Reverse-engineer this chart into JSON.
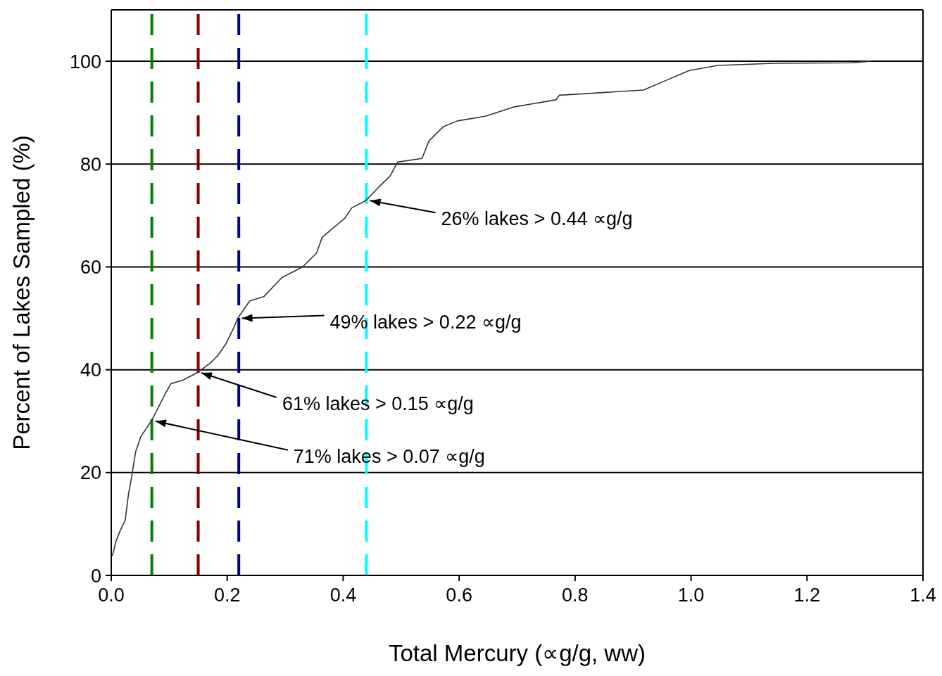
{
  "chart_data": {
    "type": "line",
    "xlabel": "Total Mercury (∝g/g, ww)",
    "ylabel": "Percent of Lakes Sampled (%)",
    "xlim": [
      0,
      1.4
    ],
    "xticks": [
      {
        "value": 0,
        "label": "0.0"
      },
      0.2,
      0.4,
      0.6,
      0.8,
      {
        "value": 1,
        "label": "1.0"
      },
      1.2,
      1.4
    ],
    "ylim": [
      0,
      110
    ],
    "yticks": [
      0,
      20,
      40,
      60,
      80,
      100
    ],
    "grid": "y",
    "legend": false,
    "marker": "none",
    "line_style": "solid",
    "series": [
      {
        "color": "#333333",
        "x": [
          0.002,
          0.008,
          0.015,
          0.024,
          0.027,
          0.03,
          0.035,
          0.042,
          0.051,
          0.069,
          0.081,
          0.093,
          0.103,
          0.124,
          0.148,
          0.172,
          0.184,
          0.197,
          0.212,
          0.218,
          0.239,
          0.263,
          0.294,
          0.33,
          0.354,
          0.364,
          0.403,
          0.415,
          0.439,
          0.462,
          0.481,
          0.494,
          0.536,
          0.548,
          0.573,
          0.597,
          0.645,
          0.694,
          0.767,
          0.773,
          0.918,
          0.955,
          0.997,
          1.046,
          1.143,
          1.276,
          1.31
        ],
        "values": [
          3.8,
          6.6,
          8.6,
          10.7,
          13.4,
          16,
          19,
          24,
          27,
          30,
          32.6,
          35.3,
          37.3,
          38,
          39.4,
          41.4,
          42.8,
          44.9,
          48.3,
          50,
          53.4,
          54.2,
          57.9,
          60,
          62.7,
          65.8,
          69.5,
          71.5,
          72.9,
          75.6,
          77.7,
          80.4,
          81.1,
          84.5,
          87.3,
          88.4,
          89.3,
          91.1,
          92.5,
          93.4,
          94.4,
          96.2,
          98.2,
          99.2,
          99.6,
          99.7,
          100
        ]
      }
    ],
    "ref_lines": [
      {
        "axis": "x",
        "value": 0.07,
        "color": "#008000",
        "line_style": "dashed"
      },
      {
        "axis": "x",
        "value": 0.15,
        "color": "#800000",
        "line_style": "dashed"
      },
      {
        "axis": "x",
        "value": 0.22,
        "color": "#000080",
        "line_style": "dashed"
      },
      {
        "axis": "x",
        "value": 0.44,
        "color": "#00ffff",
        "line_style": "dashed"
      }
    ],
    "annotations": [
      {
        "text": "26% lakes > 0.44 ∝g/g",
        "x": 0.439,
        "y": 72.9
      },
      {
        "text": "49% lakes > 0.22 ∝g/g",
        "x": 0.218,
        "y": 50
      },
      {
        "text": "61% lakes > 0.15 ∝g/g",
        "x": 0.148,
        "y": 39.4
      },
      {
        "text": "71% lakes > 0.07 ∝g/g",
        "x": 0.069,
        "y": 30
      }
    ]
  }
}
